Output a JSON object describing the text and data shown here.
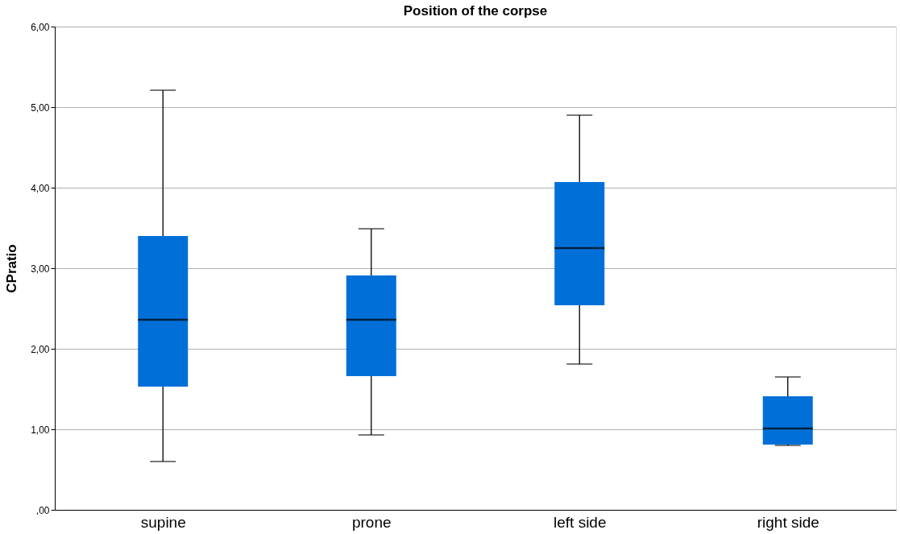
{
  "chart_data": {
    "type": "box",
    "title": "Position of the corpse",
    "ylabel": "CPratio",
    "categories": [
      "supine",
      "prone",
      "left side",
      "right side"
    ],
    "boxes": [
      {
        "low": 0.6,
        "q1": 1.53,
        "median": 2.36,
        "q3": 3.4,
        "high": 5.21
      },
      {
        "low": 0.93,
        "q1": 1.66,
        "median": 2.36,
        "q3": 2.91,
        "high": 3.49
      },
      {
        "low": 1.81,
        "q1": 2.54,
        "median": 3.25,
        "q3": 4.07,
        "high": 4.9
      },
      {
        "low": 0.8,
        "q1": 0.81,
        "median": 1.01,
        "q3": 1.41,
        "high": 1.65
      }
    ],
    "color": "#0070d8",
    "ylim": [
      0,
      6
    ],
    "yticks": [
      {
        "value": 0,
        "label": ",00"
      },
      {
        "value": 1,
        "label": "1,00"
      },
      {
        "value": 2,
        "label": "2,00"
      },
      {
        "value": 3,
        "label": "3,00"
      },
      {
        "value": 4,
        "label": "4,00"
      },
      {
        "value": 5,
        "label": "5,00"
      },
      {
        "value": 6,
        "label": "6,00"
      }
    ],
    "grid": "y"
  }
}
